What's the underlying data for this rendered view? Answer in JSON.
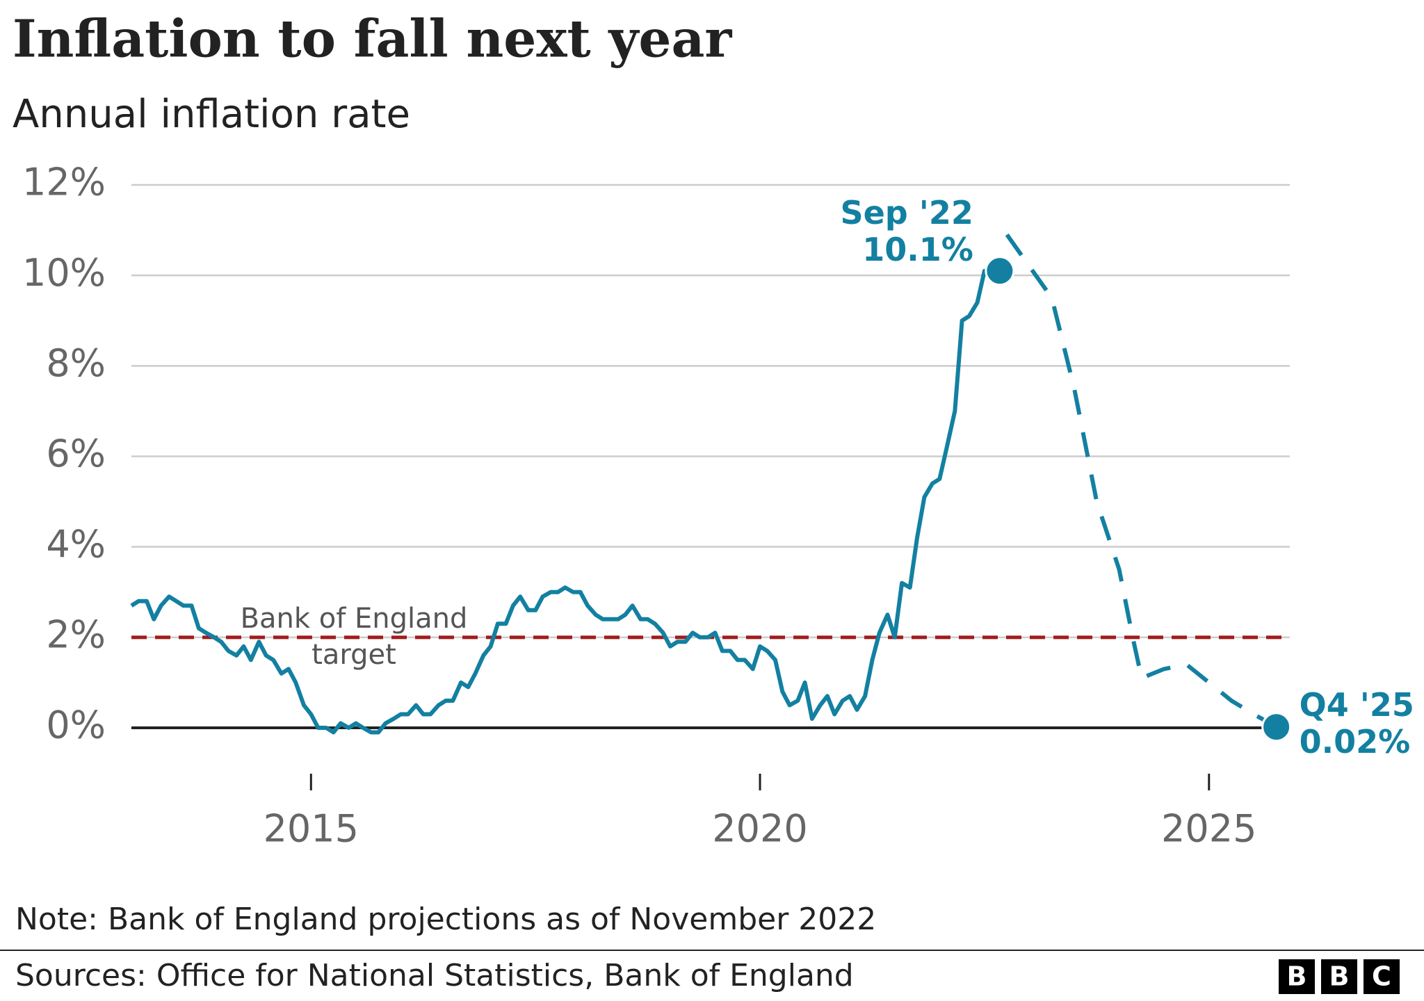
{
  "chart_data": {
    "type": "line",
    "title": "Inflation to fall next year",
    "subtitle": "Annual inflation rate",
    "note": "Note: Bank of England projections as of November 2022",
    "source": "Sources: Office for National Statistics, Bank of England",
    "logo": [
      "B",
      "B",
      "C"
    ],
    "xlim": [
      2013,
      2025.9
    ],
    "xticks": [
      2015,
      2020,
      2025
    ],
    "ylim": [
      -1,
      12
    ],
    "yticks": [
      {
        "value": 0,
        "label": "0%"
      },
      {
        "value": 2,
        "label": "2%"
      },
      {
        "value": 4,
        "label": "4%"
      },
      {
        "value": 6,
        "label": "6%"
      },
      {
        "value": 8,
        "label": "8%"
      },
      {
        "value": 10,
        "label": "10%"
      },
      {
        "value": 12,
        "label": "12%"
      }
    ],
    "grid": true,
    "target": {
      "value": 2,
      "label": [
        "Bank of England",
        "target"
      ],
      "color": "#a01c1c"
    },
    "series": [
      {
        "color": "#1380a1",
        "style": "solid",
        "x": [
          2013,
          2013.08,
          2013.17,
          2013.25,
          2013.33,
          2013.42,
          2013.5,
          2013.58,
          2013.67,
          2013.75,
          2013.83,
          2013.92,
          2014,
          2014.08,
          2014.17,
          2014.25,
          2014.33,
          2014.42,
          2014.5,
          2014.58,
          2014.67,
          2014.75,
          2014.83,
          2014.92,
          2015,
          2015.08,
          2015.17,
          2015.25,
          2015.33,
          2015.42,
          2015.5,
          2015.58,
          2015.67,
          2015.75,
          2015.83,
          2015.92,
          2016,
          2016.08,
          2016.17,
          2016.25,
          2016.33,
          2016.42,
          2016.5,
          2016.58,
          2016.67,
          2016.75,
          2016.83,
          2016.92,
          2017,
          2017.08,
          2017.17,
          2017.25,
          2017.33,
          2017.42,
          2017.5,
          2017.58,
          2017.67,
          2017.75,
          2017.83,
          2017.92,
          2018,
          2018.08,
          2018.17,
          2018.25,
          2018.33,
          2018.42,
          2018.5,
          2018.58,
          2018.67,
          2018.75,
          2018.83,
          2018.92,
          2019,
          2019.08,
          2019.17,
          2019.25,
          2019.33,
          2019.42,
          2019.5,
          2019.58,
          2019.67,
          2019.75,
          2019.83,
          2019.92,
          2020,
          2020.08,
          2020.17,
          2020.25,
          2020.33,
          2020.42,
          2020.5,
          2020.58,
          2020.67,
          2020.75,
          2020.83,
          2020.92,
          2021,
          2021.08,
          2021.17,
          2021.25,
          2021.33,
          2021.42,
          2021.5,
          2021.58,
          2021.67,
          2021.75,
          2021.83,
          2021.92,
          2022,
          2022.08,
          2022.17,
          2022.25,
          2022.33,
          2022.42,
          2022.5,
          2022.58,
          2022.67
        ],
        "values": [
          2.7,
          2.8,
          2.8,
          2.4,
          2.7,
          2.9,
          2.8,
          2.7,
          2.7,
          2.2,
          2.1,
          2.0,
          1.9,
          1.7,
          1.6,
          1.8,
          1.5,
          1.9,
          1.6,
          1.5,
          1.2,
          1.3,
          1.0,
          0.5,
          0.3,
          0.0,
          0.0,
          -0.1,
          0.1,
          0.0,
          0.1,
          0.0,
          -0.1,
          -0.1,
          0.1,
          0.2,
          0.3,
          0.3,
          0.5,
          0.3,
          0.3,
          0.5,
          0.6,
          0.6,
          1.0,
          0.9,
          1.2,
          1.6,
          1.8,
          2.3,
          2.3,
          2.7,
          2.9,
          2.6,
          2.6,
          2.9,
          3.0,
          3.0,
          3.1,
          3.0,
          3.0,
          2.7,
          2.5,
          2.4,
          2.4,
          2.4,
          2.5,
          2.7,
          2.4,
          2.4,
          2.3,
          2.1,
          1.8,
          1.9,
          1.9,
          2.1,
          2.0,
          2.0,
          2.1,
          1.7,
          1.7,
          1.5,
          1.5,
          1.3,
          1.8,
          1.7,
          1.5,
          0.8,
          0.5,
          0.6,
          1.0,
          0.2,
          0.5,
          0.7,
          0.3,
          0.6,
          0.7,
          0.4,
          0.7,
          1.5,
          2.1,
          2.5,
          2.0,
          3.2,
          3.1,
          4.2,
          5.1,
          5.4,
          5.5,
          6.2,
          7.0,
          9.0,
          9.1,
          9.4,
          10.1,
          9.9,
          10.1
        ],
        "highlight": {
          "text": "Sep '22",
          "label": "10.1%"
        }
      },
      {
        "color": "#1380a1",
        "style": "dashed",
        "x": [
          2022.75,
          2023.25,
          2023.5,
          2023.75,
          2024.0,
          2024.15,
          2024.25,
          2024.5,
          2024.75,
          2025.0,
          2025.25,
          2025.5,
          2025.75
        ],
        "values": [
          10.9,
          9.5,
          7.5,
          5.0,
          3.5,
          2.0,
          1.1,
          1.3,
          1.4,
          1.0,
          0.6,
          0.3,
          0.02
        ],
        "highlight": {
          "text": "Q4 '25",
          "label": "0.02%"
        }
      }
    ]
  }
}
